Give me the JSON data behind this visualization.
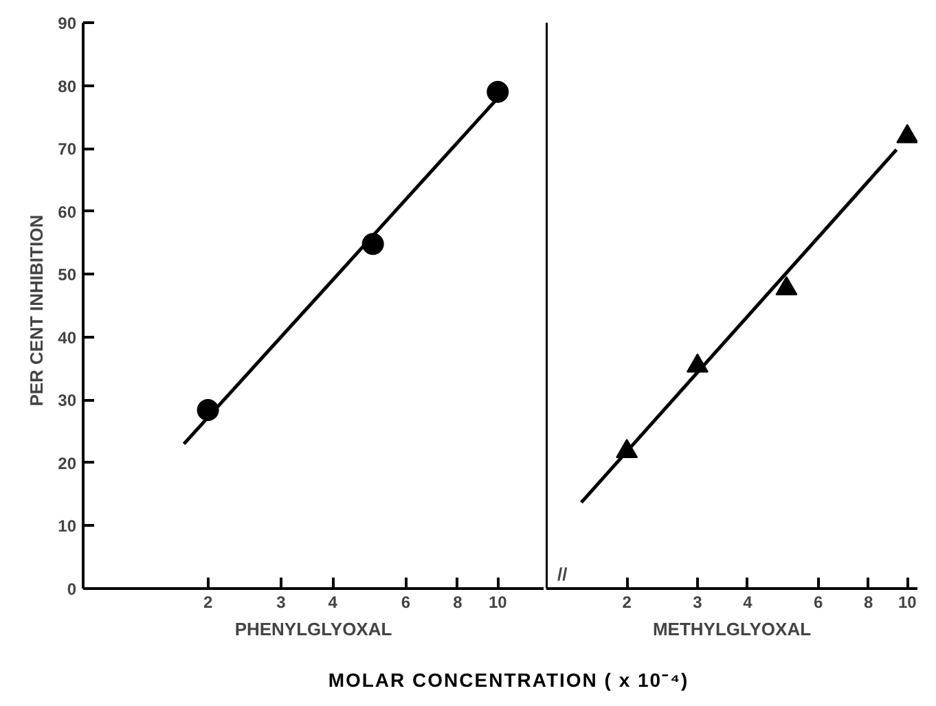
{
  "chart_data": [
    {
      "type": "scatter",
      "ylabel": "PER CENT   INHIBITION",
      "xlabel": "PHENYLGLYOXAL",
      "log": "x",
      "grid": false,
      "xlim": [
        1,
        12.9
      ],
      "xticks": [
        2,
        3,
        4,
        6,
        8,
        10
      ],
      "ylim": [
        0,
        90
      ],
      "yticks": [
        0,
        10,
        20,
        30,
        40,
        50,
        60,
        70,
        80,
        90
      ],
      "annotations": [
        "MOLAR CONCENTRATION  ( x 10⁻⁴)"
      ],
      "series": [
        {
          "color": "#000000",
          "marker": "circle",
          "x": [
            2,
            5,
            10
          ],
          "values": [
            28.4,
            54.8,
            79
          ]
        },
        {
          "type": "line",
          "color": "#000000",
          "x": [
            1.75,
            10
          ],
          "values": [
            23,
            78
          ]
        }
      ]
    },
    {
      "type": "scatter",
      "xlabel": "METHYLGLYOXAL",
      "log": "x",
      "grid": false,
      "tick_labels": "x",
      "xlim": [
        1.26,
        10.6
      ],
      "xticks": [
        2,
        3,
        4,
        6,
        8,
        10
      ],
      "ylim": [
        0,
        90
      ],
      "yticks": [
        0,
        10,
        20,
        30,
        40,
        50,
        60,
        70,
        80,
        90
      ],
      "annotations": [
        "//"
      ],
      "series": [
        {
          "color": "#000000",
          "marker": "triangle",
          "x": [
            2,
            3,
            5,
            10
          ],
          "values": [
            21.8,
            35.4,
            47.7,
            71.9
          ]
        },
        {
          "type": "line",
          "color": "#000000",
          "x": [
            1.54,
            9.4
          ],
          "values": [
            13.7,
            69.8
          ]
        }
      ]
    }
  ]
}
